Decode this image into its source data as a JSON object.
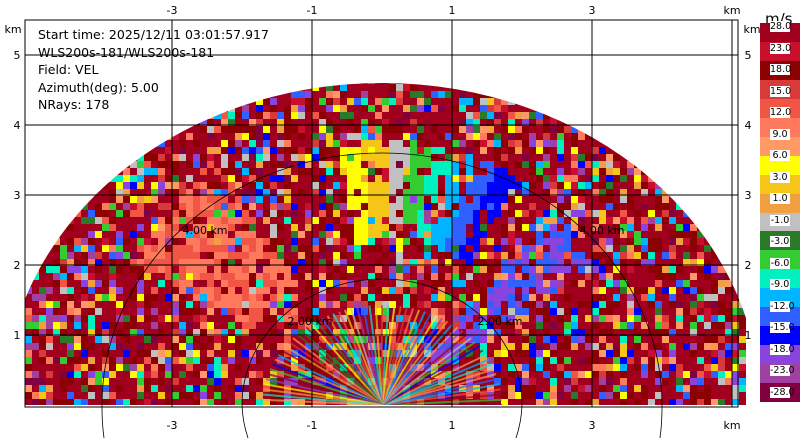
{
  "info": {
    "start_time": "Start time: 2025/12/11 03:01:57.917",
    "station": "WLS200s-181/WLS200s-181",
    "field": "Field: VEL",
    "azimuth": "Azimuth(deg): 5.00",
    "nrays": "NRays: 178"
  },
  "axes": {
    "x_unit": "km",
    "y_unit": "km",
    "x_ticks": [
      "-3",
      "-1",
      "1",
      "3"
    ],
    "y_ticks": [
      "1",
      "2",
      "3",
      "4",
      "5"
    ]
  },
  "range_rings": [
    "2.00 km",
    "4.00 km"
  ],
  "colorbar": {
    "unit": "m/s",
    "labels": [
      "28.0",
      "23.0",
      "18.0",
      "15.0",
      "12.0",
      "9.0",
      "6.0",
      "3.0",
      "1.0",
      "-1.0",
      "-3.0",
      "-6.0",
      "-9.0",
      "-12.0",
      "-15.0",
      "-18.0",
      "-23.0",
      "-28.0"
    ],
    "colors": [
      "#a0001e",
      "#c8102e",
      "#8b0000",
      "#d83a3a",
      "#f05545",
      "#ff7a5c",
      "#ff9966",
      "#ffff00",
      "#f5c518",
      "#f0a040",
      "#c0c0c0",
      "#2a7a2a",
      "#33cc33",
      "#00f0c0",
      "#00b4ff",
      "#3060ff",
      "#0000ff",
      "#8844dd",
      "#a040a0",
      "#800040"
    ]
  },
  "colors": {
    "background": "#ffffff",
    "grid": "#000000"
  }
}
